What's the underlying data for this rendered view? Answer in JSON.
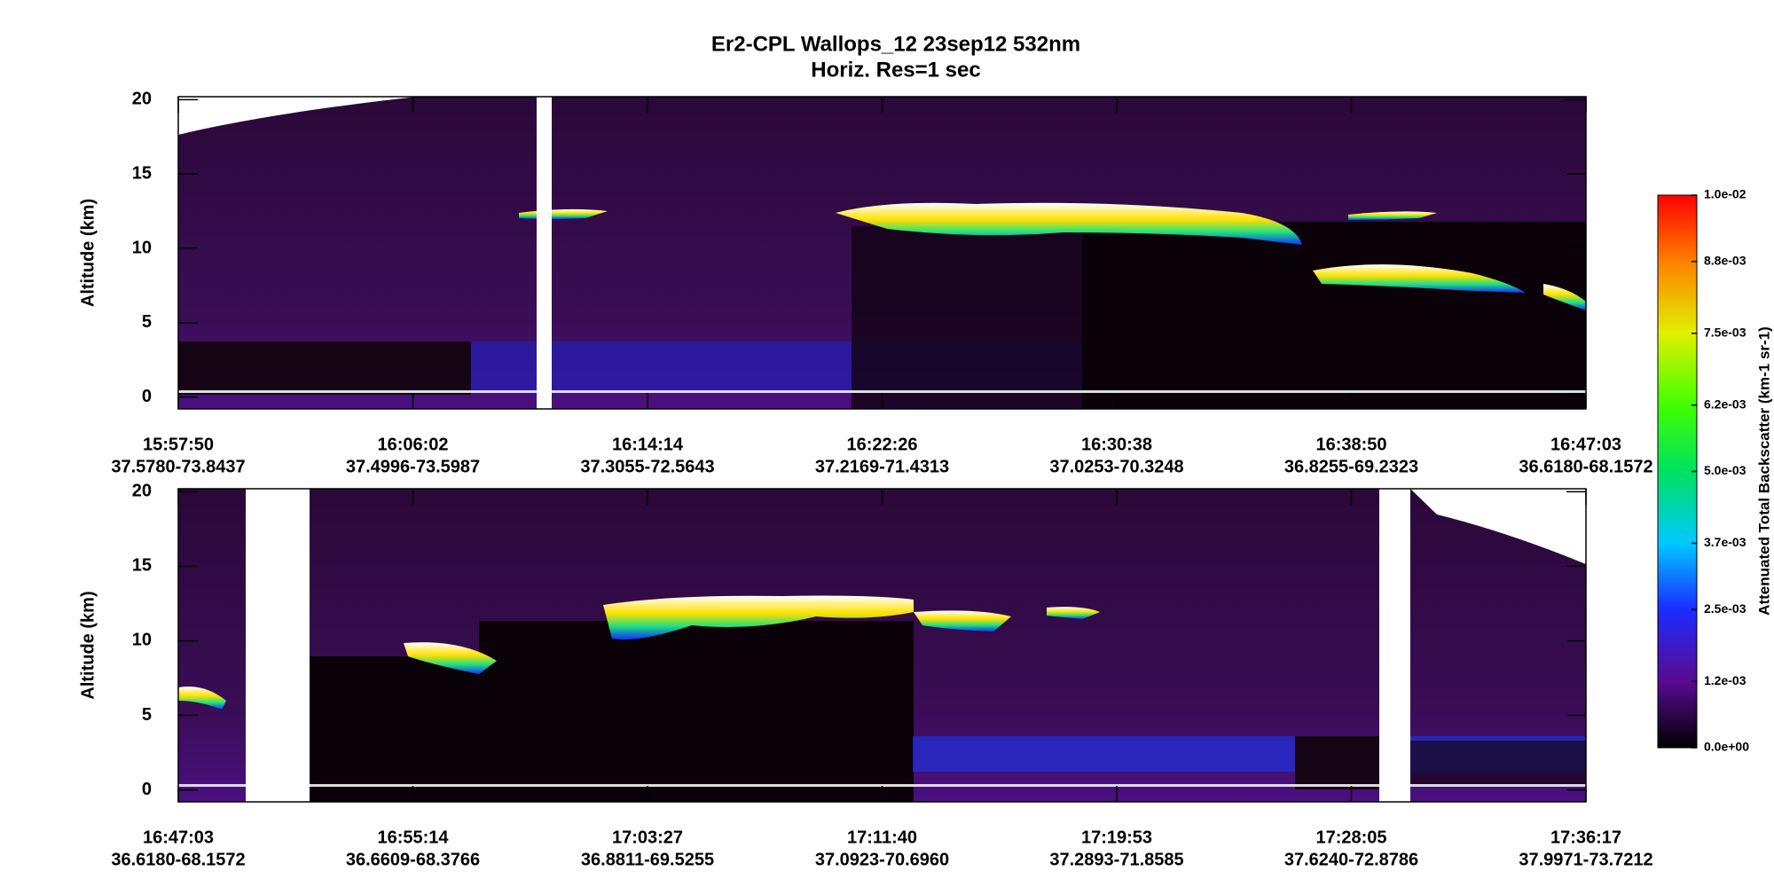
{
  "title": "Er2-CPL  Wallops_12  23sep12  532nm",
  "subtitle": "Horiz. Res=1 sec",
  "chart_data": [
    {
      "type": "heatmap",
      "y_label": "Altitude (km)",
      "ylim": [
        -0.8,
        20.2
      ],
      "yticks": [
        0,
        5,
        10,
        15,
        20
      ],
      "categories": [
        "15:57:50",
        "16:06:02",
        "16:14:14",
        "16:22:26",
        "16:30:38",
        "16:38:50",
        "16:47:03"
      ],
      "positions": [
        "37.5780-73.8437",
        "37.4996-73.5987",
        "37.3055-72.5643",
        "37.2169-71.4313",
        "37.0253-70.3248",
        "36.8255-69.2323",
        "36.6180-68.1572"
      ]
    },
    {
      "type": "heatmap",
      "y_label": "Altitude (km)",
      "ylim": [
        -0.8,
        20.2
      ],
      "yticks": [
        0,
        5,
        10,
        15,
        20
      ],
      "categories": [
        "16:47:03",
        "16:55:14",
        "17:03:27",
        "17:11:40",
        "17:19:53",
        "17:28:05",
        "17:36:17"
      ],
      "positions": [
        "36.6180-68.1572",
        "36.6609-68.3766",
        "36.8811-69.5255",
        "37.0923-70.6960",
        "37.2893-71.8585",
        "37.6240-72.8786",
        "37.9971-73.7212"
      ]
    },
    {
      "type": "colorbar",
      "label": "Attenuated Total Backscatter (km-1 sr-1)",
      "ylim": [
        0,
        0.01
      ],
      "yticks": [
        {
          "value": 0,
          "label": "0.0e+00"
        },
        {
          "value": 0.0012,
          "label": "1.2e-03"
        },
        {
          "value": 0.0025,
          "label": "2.5e-03"
        },
        {
          "value": 0.0037,
          "label": "3.7e-03"
        },
        {
          "value": 0.005,
          "label": "5.0e-03"
        },
        {
          "value": 0.0062,
          "label": "6.2e-03"
        },
        {
          "value": 0.0075,
          "label": "7.5e-03"
        },
        {
          "value": 0.0088,
          "label": "8.8e-03"
        },
        {
          "value": 0.01,
          "label": "1.0e-02"
        }
      ]
    }
  ]
}
